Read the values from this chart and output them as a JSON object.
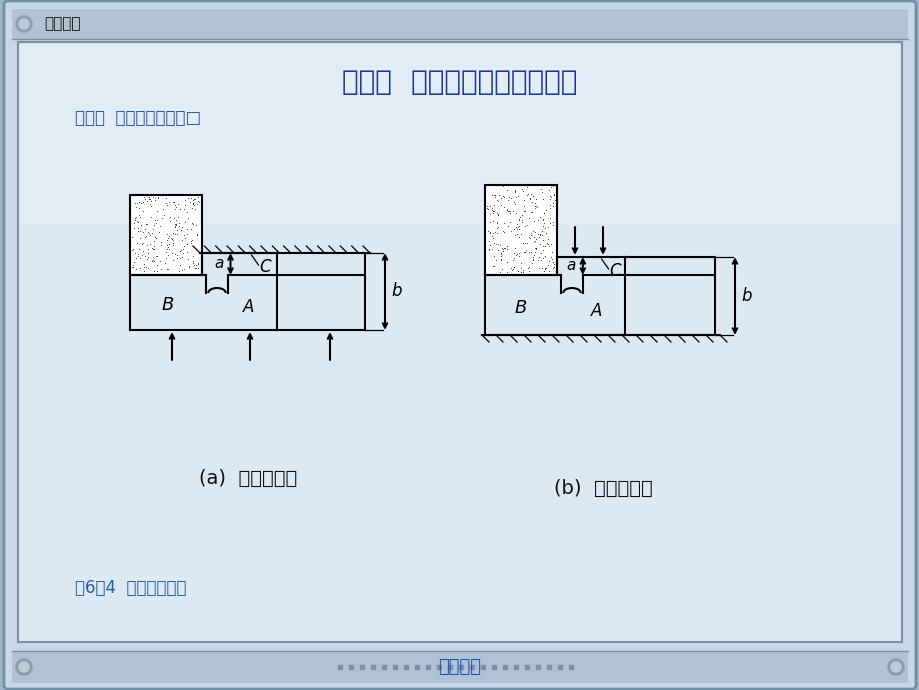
{
  "title": "第六章  机械加工工艺过程设计",
  "subtitle": "第一节  定位基准的选择□",
  "caption": "图6－4  定位误差分析",
  "bottom_link": "返回目录",
  "header_text": "工程制图",
  "fig_a_label": "(a)  无定位误差",
  "fig_b_label": "(b)  有定位误差",
  "bg_outer": "#a0b4c8",
  "bg_inner": "#dce6f0",
  "bg_header": "#b0c0d0",
  "title_color": "#1a3a8c",
  "subtitle_color": "#2255aa",
  "caption_color": "#2060a0",
  "link_color": "#1a50c0",
  "header_color": "#111111",
  "line_color": "#000000"
}
